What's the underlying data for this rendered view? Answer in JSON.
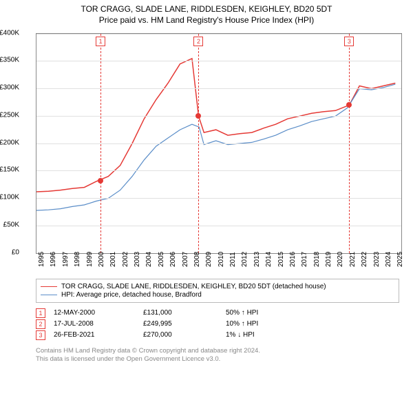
{
  "title": "TOR CRAGG, SLADE LANE, RIDDLESDEN, KEIGHLEY, BD20 5DT",
  "subtitle": "Price paid vs. HM Land Registry's House Price Index (HPI)",
  "chart": {
    "type": "line",
    "background_color": "#ffffff",
    "grid_color": "#e0e0e0",
    "border_color": "#888888",
    "x_years": [
      1995,
      1996,
      1997,
      1998,
      1999,
      2000,
      2001,
      2002,
      2003,
      2004,
      2005,
      2006,
      2007,
      2008,
      2009,
      2010,
      2011,
      2012,
      2013,
      2014,
      2015,
      2016,
      2017,
      2018,
      2019,
      2020,
      2021,
      2022,
      2023,
      2024,
      2025
    ],
    "xlim": [
      1995,
      2025.5
    ],
    "ylim": [
      0,
      400000
    ],
    "ytick_step": 50000,
    "ytick_labels": [
      "£0",
      "£50K",
      "£100K",
      "£150K",
      "£200K",
      "£250K",
      "£300K",
      "£350K",
      "£400K"
    ],
    "axis_fontsize": 10,
    "series": [
      {
        "name": "TOR CRAGG, SLADE LANE, RIDDLESDEN, KEIGHLEY, BD20 5DT (detached house)",
        "color": "#e53935",
        "line_width": 1.5,
        "points": [
          [
            1995,
            112000
          ],
          [
            1996,
            113000
          ],
          [
            1997,
            115000
          ],
          [
            1998,
            118000
          ],
          [
            1999,
            120000
          ],
          [
            2000,
            131000
          ],
          [
            2001,
            140000
          ],
          [
            2002,
            160000
          ],
          [
            2003,
            200000
          ],
          [
            2004,
            245000
          ],
          [
            2005,
            280000
          ],
          [
            2006,
            310000
          ],
          [
            2007,
            345000
          ],
          [
            2008,
            355000
          ],
          [
            2008.55,
            249995
          ],
          [
            2009,
            220000
          ],
          [
            2010,
            225000
          ],
          [
            2011,
            215000
          ],
          [
            2012,
            218000
          ],
          [
            2013,
            220000
          ],
          [
            2014,
            228000
          ],
          [
            2015,
            235000
          ],
          [
            2016,
            245000
          ],
          [
            2017,
            250000
          ],
          [
            2018,
            255000
          ],
          [
            2019,
            258000
          ],
          [
            2020,
            260000
          ],
          [
            2021.15,
            270000
          ],
          [
            2022,
            305000
          ],
          [
            2023,
            300000
          ],
          [
            2024,
            305000
          ],
          [
            2025,
            310000
          ]
        ]
      },
      {
        "name": "HPI: Average price, detached house, Bradford",
        "color": "#5a8dc8",
        "line_width": 1.2,
        "points": [
          [
            1995,
            78000
          ],
          [
            1996,
            79000
          ],
          [
            1997,
            81000
          ],
          [
            1998,
            85000
          ],
          [
            1999,
            88000
          ],
          [
            2000,
            95000
          ],
          [
            2001,
            100000
          ],
          [
            2002,
            115000
          ],
          [
            2003,
            140000
          ],
          [
            2004,
            170000
          ],
          [
            2005,
            195000
          ],
          [
            2006,
            210000
          ],
          [
            2007,
            225000
          ],
          [
            2008,
            235000
          ],
          [
            2008.6,
            230000
          ],
          [
            2009,
            198000
          ],
          [
            2010,
            205000
          ],
          [
            2011,
            198000
          ],
          [
            2012,
            200000
          ],
          [
            2013,
            202000
          ],
          [
            2014,
            208000
          ],
          [
            2015,
            215000
          ],
          [
            2016,
            225000
          ],
          [
            2017,
            232000
          ],
          [
            2018,
            240000
          ],
          [
            2019,
            245000
          ],
          [
            2020,
            250000
          ],
          [
            2021,
            265000
          ],
          [
            2022,
            300000
          ],
          [
            2023,
            298000
          ],
          [
            2024,
            302000
          ],
          [
            2025,
            308000
          ]
        ]
      }
    ],
    "markers": [
      {
        "id": "1",
        "x": 2000.36,
        "y": 131000,
        "label_y_top": true
      },
      {
        "id": "2",
        "x": 2008.55,
        "y": 249995,
        "label_y_top": true
      },
      {
        "id": "3",
        "x": 2021.15,
        "y": 270000,
        "label_y_top": true
      }
    ]
  },
  "legend": {
    "items": [
      {
        "color": "#e53935",
        "label": "TOR CRAGG, SLADE LANE, RIDDLESDEN, KEIGHLEY, BD20 5DT (detached house)"
      },
      {
        "color": "#5a8dc8",
        "label": "HPI: Average price, detached house, Bradford"
      }
    ]
  },
  "sales": [
    {
      "id": "1",
      "date": "12-MAY-2000",
      "price": "£131,000",
      "diff": "50% ↑ HPI"
    },
    {
      "id": "2",
      "date": "17-JUL-2008",
      "price": "£249,995",
      "diff": "10% ↑ HPI"
    },
    {
      "id": "3",
      "date": "26-FEB-2021",
      "price": "£270,000",
      "diff": "1% ↓ HPI"
    }
  ],
  "footnote_line1": "Contains HM Land Registry data © Crown copyright and database right 2024.",
  "footnote_line2": "This data is licensed under the Open Government Licence v3.0."
}
